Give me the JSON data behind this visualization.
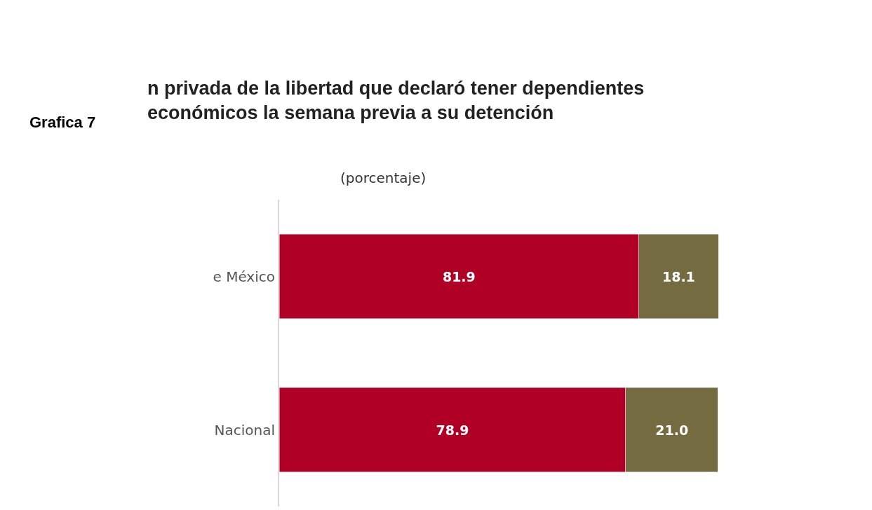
{
  "chart_data": {
    "type": "bar",
    "orientation": "horizontal",
    "stacked": true,
    "title": "n privada de la libertad que declaró tener dependientes\neconómicos la semana previa a su detención",
    "subtitle": "(porcentaje)",
    "annotations": [
      "Grafica 7"
    ],
    "categories": [
      "e México",
      "Nacional"
    ],
    "series": [
      {
        "color": "#b10026",
        "values": [
          81.9,
          78.9
        ],
        "value_labels": [
          "81.9",
          "78.9"
        ]
      },
      {
        "color": "#746c40",
        "values": [
          18.1,
          21.0
        ],
        "value_labels": [
          "18.1",
          "21.0"
        ]
      }
    ],
    "tick_labels": "y",
    "legend": false
  }
}
